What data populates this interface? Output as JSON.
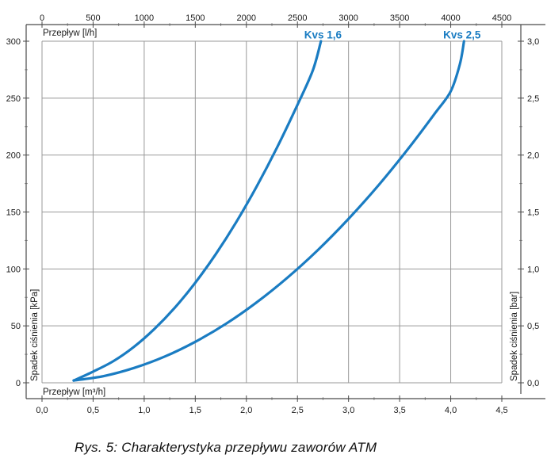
{
  "figure": {
    "caption": "Rys. 5: Charakterystyka przepływu zaworów ATM"
  },
  "colors": {
    "curve_blue": "#1a7cc2",
    "grid": "#999999",
    "axis": "#4a4a4a",
    "tick_text": "#1a1a1a",
    "background": "#ffffff"
  },
  "chart_data": {
    "type": "line",
    "title": "Rys. 5: Charakterystyka przepływu zaworów ATM",
    "grid": true,
    "legend_position": "inline-labels-top",
    "axes": {
      "top": {
        "label": "Przepływ [l/h]",
        "range": [
          0,
          4500
        ],
        "tick_step": 500,
        "minor_tick_step": 250,
        "tick_labels": [
          "0",
          "500",
          "1000",
          "1500",
          "2000",
          "2500",
          "3000",
          "3500",
          "4000",
          "4500"
        ]
      },
      "bottom": {
        "label": "Przepływ [m³/h]",
        "range": [
          0,
          4.5
        ],
        "tick_step": 0.5,
        "minor_tick_step": 0.25,
        "tick_labels": [
          "0,0",
          "0,5",
          "1,0",
          "1,5",
          "2,0",
          "2,5",
          "3,0",
          "3,5",
          "4,0",
          "4,5"
        ]
      },
      "left": {
        "label": "Spadek ciśnienia [kPa]",
        "range": [
          0,
          300
        ],
        "tick_step": 50,
        "minor_tick_step": 25,
        "tick_labels": [
          "0",
          "50",
          "100",
          "150",
          "200",
          "250",
          "300"
        ]
      },
      "right": {
        "label": "Spadek ciśnienia [bar]",
        "range": [
          0,
          3.0
        ],
        "tick_step": 0.5,
        "minor_tick_step": 0.25,
        "tick_labels": [
          "0,0",
          "0,5",
          "1,0",
          "1,5",
          "2,0",
          "2,5",
          "3,0"
        ]
      }
    },
    "series": [
      {
        "name": "Kvs 1,6",
        "kvs": 1.6,
        "color": "#1a7cc2",
        "label_pos": {
          "m3h": 2.75,
          "kpa": 306
        },
        "points_m3h_kpa": [
          [
            0.31,
            2
          ],
          [
            0.5,
            9.8
          ],
          [
            0.7,
            19.1
          ],
          [
            0.9,
            31.6
          ],
          [
            1.1,
            47.3
          ],
          [
            1.3,
            66.0
          ],
          [
            1.5,
            87.9
          ],
          [
            1.7,
            112.9
          ],
          [
            1.9,
            141.0
          ],
          [
            2.1,
            172.3
          ],
          [
            2.3,
            206.6
          ],
          [
            2.5,
            244.1
          ],
          [
            2.65,
            274.3
          ],
          [
            2.73,
            300
          ]
        ]
      },
      {
        "name": "Kvs 2,5",
        "kvs": 2.5,
        "color": "#1a7cc2",
        "label_pos": {
          "m3h": 4.11,
          "kpa": 306
        },
        "points_m3h_kpa": [
          [
            0.31,
            2
          ],
          [
            0.6,
            5.8
          ],
          [
            0.9,
            13.0
          ],
          [
            1.2,
            23.0
          ],
          [
            1.5,
            36.0
          ],
          [
            1.8,
            51.8
          ],
          [
            2.1,
            70.6
          ],
          [
            2.4,
            92.2
          ],
          [
            2.7,
            116.6
          ],
          [
            3.0,
            144.0
          ],
          [
            3.3,
            174.2
          ],
          [
            3.6,
            207.4
          ],
          [
            3.85,
            237.2
          ],
          [
            4.0,
            256.0
          ],
          [
            4.09,
            280.0
          ],
          [
            4.13,
            300
          ]
        ]
      }
    ]
  }
}
